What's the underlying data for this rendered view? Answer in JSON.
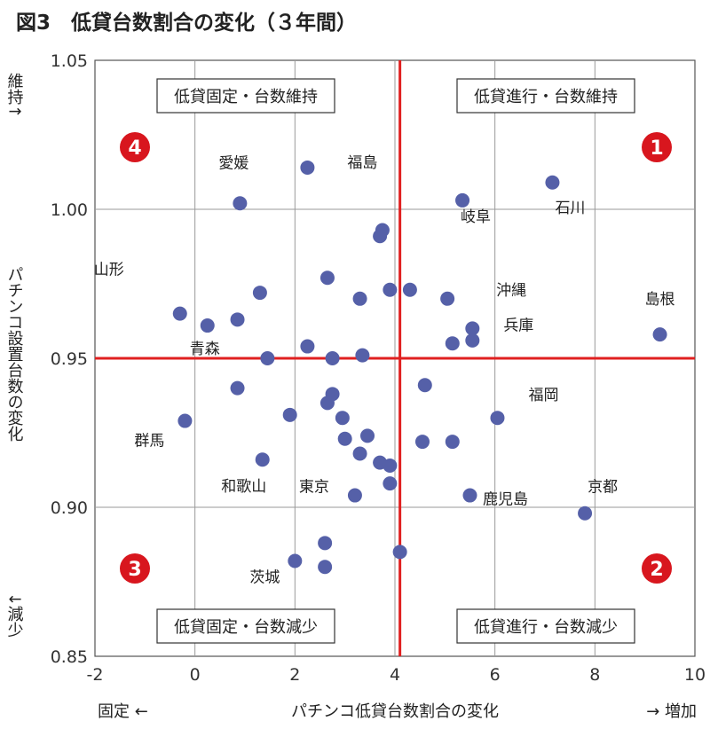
{
  "chart_data": {
    "type": "scatter",
    "title": "図3　低貸台数割合の変化（３年間）",
    "xlabel": "パチンコ低貸台数割合の変化",
    "ylabel": "パチンコ設置台数の変化",
    "x_left_note": "固定 ←",
    "x_right_note": "→ 増加",
    "y_top_note": "維持↑",
    "y_bottom_note": "↓減少",
    "xlim": [
      -2,
      10
    ],
    "ylim": [
      0.85,
      1.05
    ],
    "xticks": [
      -2,
      0,
      2,
      4,
      6,
      8,
      10
    ],
    "yticks": [
      0.85,
      0.9,
      0.95,
      1.0,
      1.05
    ],
    "ytick_labels": [
      "0.85",
      "0.90",
      "0.95",
      "1.00",
      "1.05"
    ],
    "grid": true,
    "dividers": {
      "x": 4.1,
      "y": 0.95,
      "color": "#e02020"
    },
    "point_color": "#5560a8",
    "quadrants": [
      {
        "number": "1",
        "label": "低貸進行・台数維持"
      },
      {
        "number": "2",
        "label": "低貸進行・台数減少"
      },
      {
        "number": "3",
        "label": "低貸固定・台数減少"
      },
      {
        "number": "4",
        "label": "低貸固定・台数維持"
      }
    ],
    "points": [
      {
        "x": 9.3,
        "y": 0.958,
        "label": "島根"
      },
      {
        "x": 7.15,
        "y": 1.009,
        "label": "石川"
      },
      {
        "x": 5.35,
        "y": 1.003,
        "label": "岐阜"
      },
      {
        "x": 7.8,
        "y": 0.898,
        "label": "京都"
      },
      {
        "x": 5.5,
        "y": 0.904,
        "label": "鹿児島"
      },
      {
        "x": 6.05,
        "y": 0.93,
        "label": "福岡"
      },
      {
        "x": 5.55,
        "y": 0.96,
        "label": "兵庫"
      },
      {
        "x": 5.05,
        "y": 0.97,
        "label": "沖縄"
      },
      {
        "x": 2.25,
        "y": 1.014,
        "label": "福島"
      },
      {
        "x": 0.9,
        "y": 1.002,
        "label": "愛媛"
      },
      {
        "x": -0.3,
        "y": 0.965,
        "label": "山形"
      },
      {
        "x": 0.25,
        "y": 0.961,
        "label": "青森"
      },
      {
        "x": -0.2,
        "y": 0.929,
        "label": "群馬"
      },
      {
        "x": 1.35,
        "y": 0.916,
        "label": "和歌山"
      },
      {
        "x": 3.2,
        "y": 0.904,
        "label": "東京"
      },
      {
        "x": 2.0,
        "y": 0.882,
        "label": "茨城"
      },
      {
        "x": 3.75,
        "y": 0.993
      },
      {
        "x": 3.7,
        "y": 0.991
      },
      {
        "x": 2.65,
        "y": 0.977
      },
      {
        "x": 3.9,
        "y": 0.973
      },
      {
        "x": 4.3,
        "y": 0.973
      },
      {
        "x": 1.3,
        "y": 0.972
      },
      {
        "x": 3.3,
        "y": 0.97
      },
      {
        "x": 0.85,
        "y": 0.963
      },
      {
        "x": 5.55,
        "y": 0.956
      },
      {
        "x": 5.15,
        "y": 0.955
      },
      {
        "x": 2.25,
        "y": 0.954
      },
      {
        "x": 3.35,
        "y": 0.951
      },
      {
        "x": 1.45,
        "y": 0.95
      },
      {
        "x": 2.75,
        "y": 0.95
      },
      {
        "x": 4.6,
        "y": 0.941
      },
      {
        "x": 0.85,
        "y": 0.94
      },
      {
        "x": 2.75,
        "y": 0.938
      },
      {
        "x": 2.65,
        "y": 0.935
      },
      {
        "x": 1.9,
        "y": 0.931
      },
      {
        "x": 2.95,
        "y": 0.93
      },
      {
        "x": 3.45,
        "y": 0.924
      },
      {
        "x": 3.0,
        "y": 0.923
      },
      {
        "x": 5.15,
        "y": 0.922
      },
      {
        "x": 4.55,
        "y": 0.922
      },
      {
        "x": 3.3,
        "y": 0.918
      },
      {
        "x": 3.7,
        "y": 0.915
      },
      {
        "x": 3.9,
        "y": 0.914
      },
      {
        "x": 3.9,
        "y": 0.908
      },
      {
        "x": 2.6,
        "y": 0.888
      },
      {
        "x": 4.1,
        "y": 0.885
      },
      {
        "x": 2.6,
        "y": 0.88
      }
    ]
  }
}
